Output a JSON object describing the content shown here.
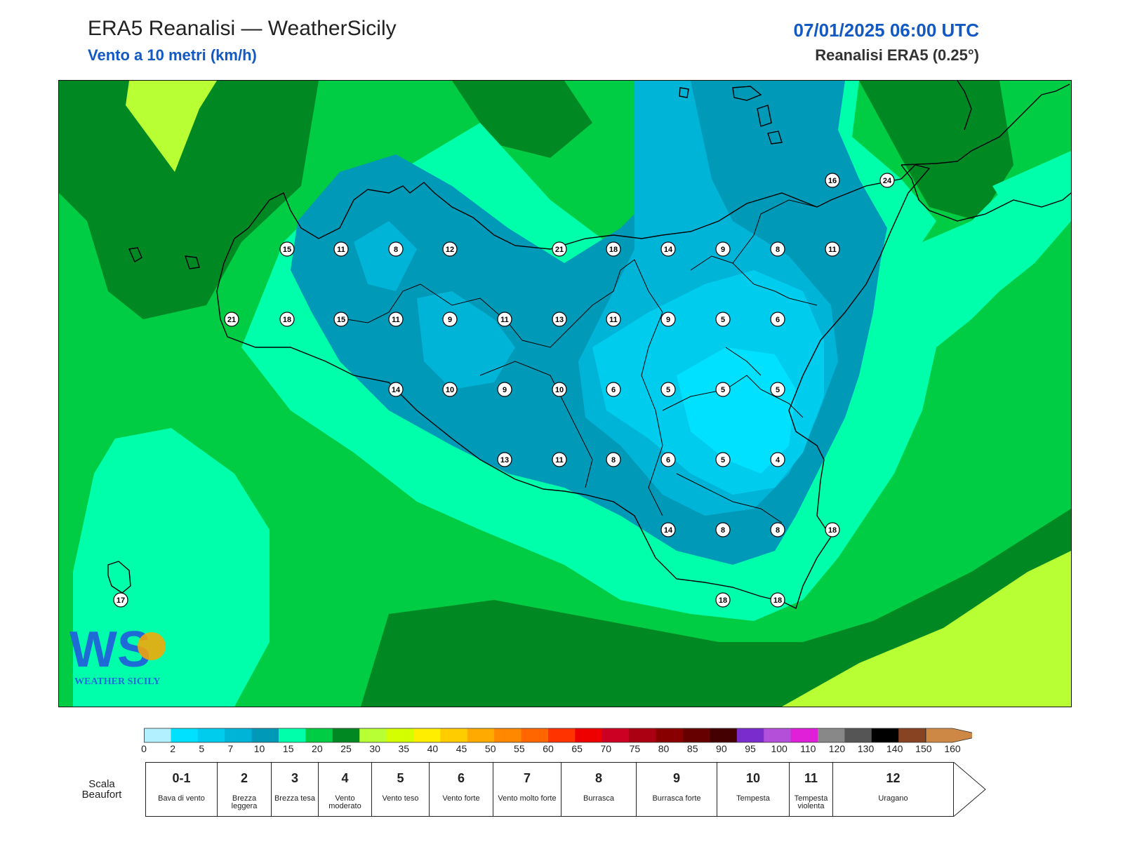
{
  "header": {
    "title": "ERA5 Reanalisi — WeatherSicily",
    "subtitle": "Vento a 10 metri (km/h)",
    "datetime": "07/01/2025 06:00 UTC",
    "source": "Reanalisi ERA5 (0.25°)"
  },
  "map": {
    "station_values": [
      {
        "value": "15"
      },
      {
        "value": "11"
      },
      {
        "value": "8"
      },
      {
        "value": "12"
      },
      {
        "value": "21"
      },
      {
        "value": "18"
      },
      {
        "value": "14"
      },
      {
        "value": "9"
      },
      {
        "value": "8"
      },
      {
        "value": "11"
      },
      {
        "value": "16"
      },
      {
        "value": "24"
      },
      {
        "value": "21"
      },
      {
        "value": "18"
      },
      {
        "value": "15"
      },
      {
        "value": "11"
      },
      {
        "value": "9"
      },
      {
        "value": "11"
      },
      {
        "value": "13"
      },
      {
        "value": "11"
      },
      {
        "value": "9"
      },
      {
        "value": "5"
      },
      {
        "value": "6"
      },
      {
        "value": "14"
      },
      {
        "value": "10"
      },
      {
        "value": "9"
      },
      {
        "value": "10"
      },
      {
        "value": "6"
      },
      {
        "value": "5"
      },
      {
        "value": "5"
      },
      {
        "value": "5"
      },
      {
        "value": "13"
      },
      {
        "value": "11"
      },
      {
        "value": "8"
      },
      {
        "value": "6"
      },
      {
        "value": "5"
      },
      {
        "value": "4"
      },
      {
        "value": "14"
      },
      {
        "value": "8"
      },
      {
        "value": "8"
      },
      {
        "value": "18"
      },
      {
        "value": "18"
      },
      {
        "value": "18"
      },
      {
        "value": "17"
      }
    ],
    "logo": {
      "letters": "WS",
      "text": "WEATHER SICILY"
    }
  },
  "legend": {
    "colors": [
      "#b3f0ff",
      "#00e0ff",
      "#00ccee",
      "#00b4d8",
      "#0099b8",
      "#00ffaa",
      "#00cc44",
      "#008822",
      "#b8ff33",
      "#d4ff00",
      "#ffee00",
      "#ffcc00",
      "#ffaa00",
      "#ff8800",
      "#ff6600",
      "#ff3300",
      "#ee0000",
      "#cc0022",
      "#aa0011",
      "#880000",
      "#660000",
      "#440000",
      "#7a2ccc",
      "#b44fd9",
      "#e020d9",
      "#888888",
      "#555555",
      "#000000",
      "#884422",
      "#cc8844"
    ],
    "ticks": [
      "0",
      "2",
      "5",
      "7",
      "10",
      "15",
      "20",
      "25",
      "30",
      "35",
      "40",
      "45",
      "50",
      "55",
      "60",
      "65",
      "70",
      "75",
      "80",
      "85",
      "90",
      "95",
      "100",
      "110",
      "120",
      "130",
      "140",
      "150",
      "160"
    ]
  },
  "beaufort": {
    "label": "Scala Beaufort",
    "cells": [
      {
        "num": "0-1",
        "desc": "Bava di vento"
      },
      {
        "num": "2",
        "desc": "Brezza leggera"
      },
      {
        "num": "3",
        "desc": "Brezza tesa"
      },
      {
        "num": "4",
        "desc": "Vento moderato"
      },
      {
        "num": "5",
        "desc": "Vento teso"
      },
      {
        "num": "6",
        "desc": "Vento forte"
      },
      {
        "num": "7",
        "desc": "Vento molto forte"
      },
      {
        "num": "8",
        "desc": "Burrasca"
      },
      {
        "num": "9",
        "desc": "Burrasca forte"
      },
      {
        "num": "10",
        "desc": "Tempesta"
      },
      {
        "num": "11",
        "desc": "Tempesta violenta"
      },
      {
        "num": "12",
        "desc": "Uragano"
      }
    ]
  }
}
